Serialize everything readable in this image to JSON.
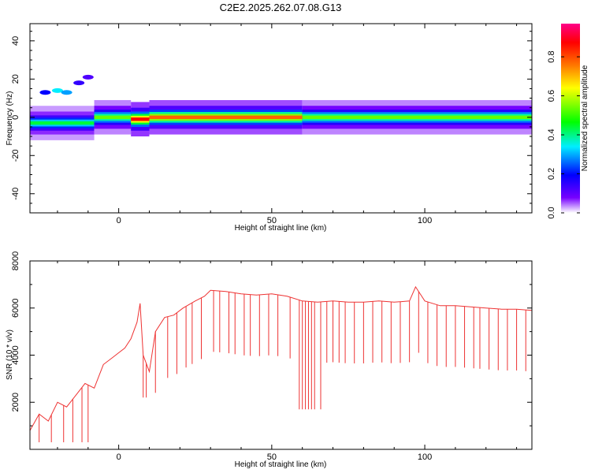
{
  "title": "C2E2.2025.262.07.08.G13",
  "chart_data": [
    {
      "type": "heatmap",
      "xlabel": "Height of straight line (km)",
      "ylabel": "Frequency (Hz)",
      "xlim": [
        -29,
        135
      ],
      "ylim": [
        -50,
        49
      ],
      "xticks": [
        0,
        50,
        100
      ],
      "yticks": [
        -40,
        -20,
        0,
        20,
        40
      ],
      "grid": false,
      "colorbar": {
        "label": "Normalized spectral amplitude",
        "range": [
          0.0,
          0.97
        ],
        "ticks": [
          "0.0",
          "0.2",
          "0.4",
          "0.6",
          "0.8"
        ],
        "colormap": [
          "#ffffff",
          "#7700ff",
          "#0000ff",
          "#00eeff",
          "#00ff00",
          "#ffff00",
          "#ff7700",
          "#ff0000",
          "#ff0088"
        ]
      },
      "ridge": {
        "description": "dominant energy near 0 Hz across heights",
        "segments": [
          {
            "x_start": -29,
            "x_end": -8,
            "freq": -3,
            "amplitude": 0.45
          },
          {
            "x_start": -8,
            "x_end": 4,
            "freq": 0,
            "amplitude": 0.55
          },
          {
            "x_start": 4,
            "x_end": 10,
            "freq": -1,
            "amplitude": 0.9
          },
          {
            "x_start": 10,
            "x_end": 60,
            "freq": 0,
            "amplitude": 0.8
          },
          {
            "x_start": 60,
            "x_end": 135,
            "freq": 0,
            "amplitude": 0.55
          }
        ],
        "secondary": [
          {
            "x": -24,
            "freq": 13,
            "amplitude": 0.2
          },
          {
            "x": -20,
            "freq": 14,
            "amplitude": 0.35
          },
          {
            "x": -17,
            "freq": 13,
            "amplitude": 0.3
          },
          {
            "x": -13,
            "freq": 18,
            "amplitude": 0.15
          },
          {
            "x": -10,
            "freq": 21,
            "amplitude": 0.12
          }
        ]
      }
    },
    {
      "type": "line",
      "xlabel": "Height of straight line (km)",
      "ylabel": "SNR (10 * v/v)",
      "xlim": [
        -29,
        135
      ],
      "ylim": [
        0,
        8000
      ],
      "xticks": [
        0,
        50,
        100
      ],
      "yticks": [
        2000,
        4000,
        6000,
        8000
      ],
      "grid": false,
      "color": "#ee3333",
      "series": [
        {
          "name": "SNR",
          "x": [
            -29,
            -26,
            -23,
            -20,
            -17,
            -14,
            -11,
            -8,
            -5,
            -2,
            0,
            2,
            4,
            6,
            7,
            8,
            10,
            12,
            15,
            18,
            21,
            25,
            28,
            30,
            35,
            40,
            45,
            50,
            55,
            60,
            65,
            70,
            75,
            80,
            85,
            90,
            95,
            97,
            100,
            105,
            110,
            115,
            120,
            125,
            130,
            135
          ],
          "values": [
            800,
            1500,
            1200,
            2000,
            1800,
            2300,
            2800,
            2600,
            3600,
            3900,
            4100,
            4300,
            4700,
            5400,
            6200,
            4000,
            3300,
            5000,
            5600,
            5700,
            6000,
            6300,
            6500,
            6750,
            6700,
            6600,
            6550,
            6600,
            6500,
            6300,
            6250,
            6300,
            6250,
            6250,
            6300,
            6250,
            6300,
            6900,
            6300,
            6100,
            6100,
            6050,
            6000,
            5950,
            5950,
            5900
          ]
        }
      ],
      "dropouts_x": [
        -26,
        -22,
        -18,
        -15,
        -12,
        -10,
        8,
        9,
        12,
        16,
        19,
        22,
        24,
        27,
        31,
        33,
        36,
        38,
        41,
        43,
        46,
        49,
        52,
        56,
        59,
        60,
        61,
        62,
        63,
        64,
        66,
        68,
        70,
        72,
        74,
        77,
        80,
        83,
        86,
        89,
        92,
        95,
        98,
        101,
        104,
        107,
        110,
        113,
        116,
        118,
        121,
        124,
        127,
        130,
        133
      ]
    }
  ]
}
